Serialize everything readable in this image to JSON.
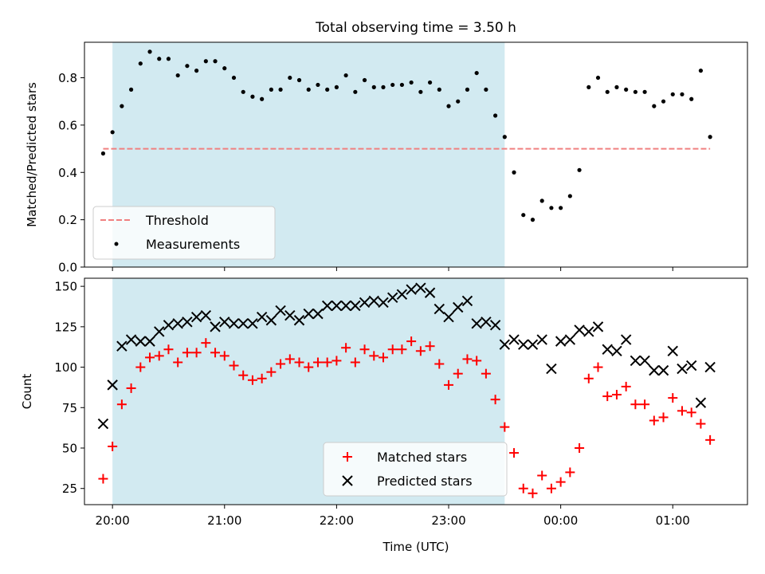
{
  "chart_data": [
    {
      "type": "scatter",
      "title": "Total observing time = 3.50 h",
      "ylabel": "Matched/Predicted stars",
      "xlabel": "",
      "ylim": [
        0,
        0.95
      ],
      "yticks": [
        "0.0",
        "0.2",
        "0.4",
        "0.6",
        "0.8"
      ],
      "ytick_values": [
        0.0,
        0.2,
        0.4,
        0.6,
        0.8
      ],
      "shaded_interval": [
        "20:00",
        "23:30"
      ],
      "shade_color": "#add8e6",
      "legend_position": "lower left",
      "series": [
        {
          "name": "Threshold",
          "kind": "dashed-line",
          "color": "#f08080",
          "x": [
            "19:55",
            "01:20"
          ],
          "y": [
            0.5,
            0.5
          ]
        },
        {
          "name": "Measurements",
          "kind": "points",
          "color": "#000000",
          "x": [
            "19:55",
            "20:00",
            "20:05",
            "20:10",
            "20:15",
            "20:20",
            "20:25",
            "20:30",
            "20:35",
            "20:40",
            "20:45",
            "20:50",
            "20:55",
            "21:00",
            "21:05",
            "21:10",
            "21:15",
            "21:20",
            "21:25",
            "21:30",
            "21:35",
            "21:40",
            "21:45",
            "21:50",
            "21:55",
            "22:00",
            "22:05",
            "22:10",
            "22:15",
            "22:20",
            "22:25",
            "22:30",
            "22:35",
            "22:40",
            "22:45",
            "22:50",
            "22:55",
            "23:00",
            "23:05",
            "23:10",
            "23:15",
            "23:20",
            "23:25",
            "23:30",
            "23:35",
            "23:40",
            "23:45",
            "23:50",
            "23:55",
            "00:00",
            "00:05",
            "00:10",
            "00:15",
            "00:20",
            "00:25",
            "00:30",
            "00:35",
            "00:40",
            "00:45",
            "00:50",
            "00:55",
            "01:00",
            "01:05",
            "01:10",
            "01:15",
            "01:20"
          ],
          "y": [
            0.48,
            0.57,
            0.68,
            0.75,
            0.86,
            0.91,
            0.88,
            0.88,
            0.81,
            0.85,
            0.83,
            0.87,
            0.87,
            0.84,
            0.8,
            0.74,
            0.72,
            0.71,
            0.75,
            0.75,
            0.8,
            0.79,
            0.75,
            0.77,
            0.75,
            0.76,
            0.81,
            0.74,
            0.79,
            0.76,
            0.76,
            0.77,
            0.77,
            0.78,
            0.74,
            0.78,
            0.75,
            0.68,
            0.7,
            0.75,
            0.82,
            0.75,
            0.64,
            0.55,
            0.4,
            0.22,
            0.2,
            0.28,
            0.25,
            0.25,
            0.3,
            0.41,
            0.76,
            0.8,
            0.74,
            0.76,
            0.75,
            0.74,
            0.74,
            0.68,
            0.7,
            0.73,
            0.73,
            0.71,
            0.83,
            0.55
          ]
        }
      ]
    },
    {
      "type": "scatter",
      "title": "",
      "xlabel": "Time (UTC)",
      "ylabel": "Count",
      "ylim": [
        15,
        155
      ],
      "yticks": [
        "25",
        "50",
        "75",
        "100",
        "125",
        "150"
      ],
      "ytick_values": [
        25,
        50,
        75,
        100,
        125,
        150
      ],
      "xticks": [
        "20:00",
        "21:00",
        "22:00",
        "23:00",
        "00:00",
        "01:00"
      ],
      "xrange": [
        "19:45",
        "01:40"
      ],
      "shaded_interval": [
        "20:00",
        "23:30"
      ],
      "shade_color": "#add8e6",
      "legend_position": "lower center",
      "series": [
        {
          "name": "Matched stars",
          "marker": "+",
          "color": "#ff0000",
          "x": [
            "19:55",
            "20:00",
            "20:05",
            "20:10",
            "20:15",
            "20:20",
            "20:25",
            "20:30",
            "20:35",
            "20:40",
            "20:45",
            "20:50",
            "20:55",
            "21:00",
            "21:05",
            "21:10",
            "21:15",
            "21:20",
            "21:25",
            "21:30",
            "21:35",
            "21:40",
            "21:45",
            "21:50",
            "21:55",
            "22:00",
            "22:05",
            "22:10",
            "22:15",
            "22:20",
            "22:25",
            "22:30",
            "22:35",
            "22:40",
            "22:45",
            "22:50",
            "22:55",
            "23:00",
            "23:05",
            "23:10",
            "23:15",
            "23:20",
            "23:25",
            "23:30",
            "23:35",
            "23:40",
            "23:45",
            "23:50",
            "23:55",
            "00:00",
            "00:05",
            "00:10",
            "00:15",
            "00:20",
            "00:25",
            "00:30",
            "00:35",
            "00:40",
            "00:45",
            "00:50",
            "00:55",
            "01:00",
            "01:05",
            "01:10",
            "01:15",
            "01:20"
          ],
          "y": [
            31,
            51,
            77,
            87,
            100,
            106,
            107,
            111,
            103,
            109,
            109,
            115,
            109,
            107,
            101,
            95,
            92,
            93,
            97,
            102,
            105,
            103,
            100,
            103,
            103,
            104,
            112,
            103,
            111,
            107,
            106,
            111,
            111,
            116,
            110,
            113,
            102,
            89,
            96,
            105,
            104,
            96,
            80,
            63,
            47,
            25,
            22,
            33,
            25,
            29,
            35,
            50,
            93,
            100,
            82,
            83,
            88,
            77,
            77,
            67,
            69,
            81,
            73,
            72,
            65,
            55
          ]
        },
        {
          "name": "Predicted stars",
          "marker": "x",
          "color": "#000000",
          "x": [
            "19:55",
            "20:00",
            "20:05",
            "20:10",
            "20:15",
            "20:20",
            "20:25",
            "20:30",
            "20:35",
            "20:40",
            "20:45",
            "20:50",
            "20:55",
            "21:00",
            "21:05",
            "21:10",
            "21:15",
            "21:20",
            "21:25",
            "21:30",
            "21:35",
            "21:40",
            "21:45",
            "21:50",
            "21:55",
            "22:00",
            "22:05",
            "22:10",
            "22:15",
            "22:20",
            "22:25",
            "22:30",
            "22:35",
            "22:40",
            "22:45",
            "22:50",
            "22:55",
            "23:00",
            "23:05",
            "23:10",
            "23:15",
            "23:20",
            "23:25",
            "23:30",
            "23:35",
            "23:40",
            "23:45",
            "23:50",
            "23:55",
            "00:00",
            "00:05",
            "00:10",
            "00:15",
            "00:20",
            "00:25",
            "00:30",
            "00:35",
            "00:40",
            "00:45",
            "00:50",
            "00:55",
            "01:00",
            "01:05",
            "01:10",
            "01:15",
            "01:20"
          ],
          "y": [
            65,
            89,
            113,
            117,
            116,
            116,
            122,
            126,
            127,
            128,
            131,
            132,
            125,
            128,
            127,
            127,
            127,
            131,
            129,
            135,
            132,
            129,
            133,
            133,
            138,
            138,
            138,
            138,
            140,
            141,
            140,
            143,
            145,
            148,
            149,
            146,
            136,
            131,
            137,
            141,
            127,
            128,
            126,
            114,
            117,
            114,
            114,
            117,
            99,
            116,
            117,
            123,
            122,
            125,
            111,
            110,
            117,
            104,
            104,
            98,
            98,
            110,
            99,
            101,
            78,
            100
          ]
        }
      ]
    }
  ]
}
